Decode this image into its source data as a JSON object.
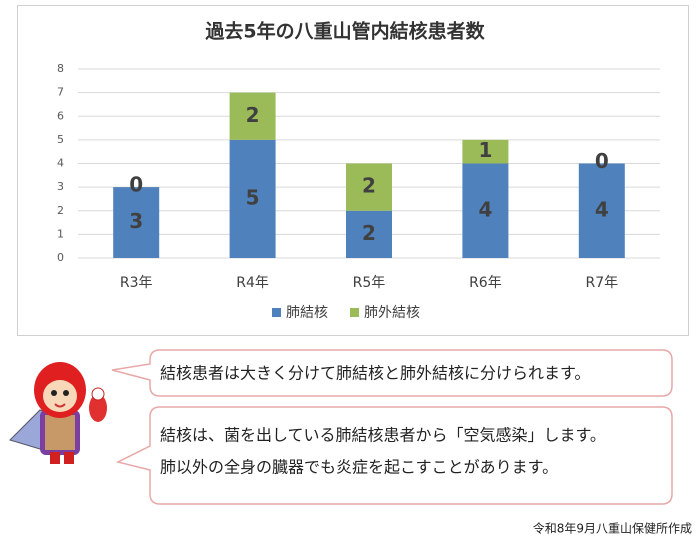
{
  "chart_data": {
    "type": "bar",
    "stacked": true,
    "title": "過去5年の八重山管内結核患者数",
    "categories": [
      "R3年",
      "R4年",
      "R5年",
      "R6年",
      "R7年"
    ],
    "series": [
      {
        "name": "肺結核",
        "color": "#4f81bd",
        "values": [
          3,
          5,
          2,
          4,
          4
        ]
      },
      {
        "name": "肺外結核",
        "color": "#9bbb59",
        "values": [
          0,
          2,
          2,
          1,
          0
        ]
      }
    ],
    "ylim": [
      0,
      8
    ],
    "yticks": [
      0,
      1,
      2,
      3,
      4,
      5,
      6,
      7,
      8
    ],
    "grid": true,
    "legend": "bottom"
  },
  "bubbles": [
    {
      "lines": [
        "結核患者は大きく分けて肺結核と肺外結核に分けられます。"
      ]
    },
    {
      "lines": [
        "結核は、菌を出している肺結核患者から「空気感染」します。",
        "肺以外の全身の臓器でも炎症を起こすことがあります。"
      ]
    }
  ],
  "footer": "令和8年9月八重山保健所作成"
}
